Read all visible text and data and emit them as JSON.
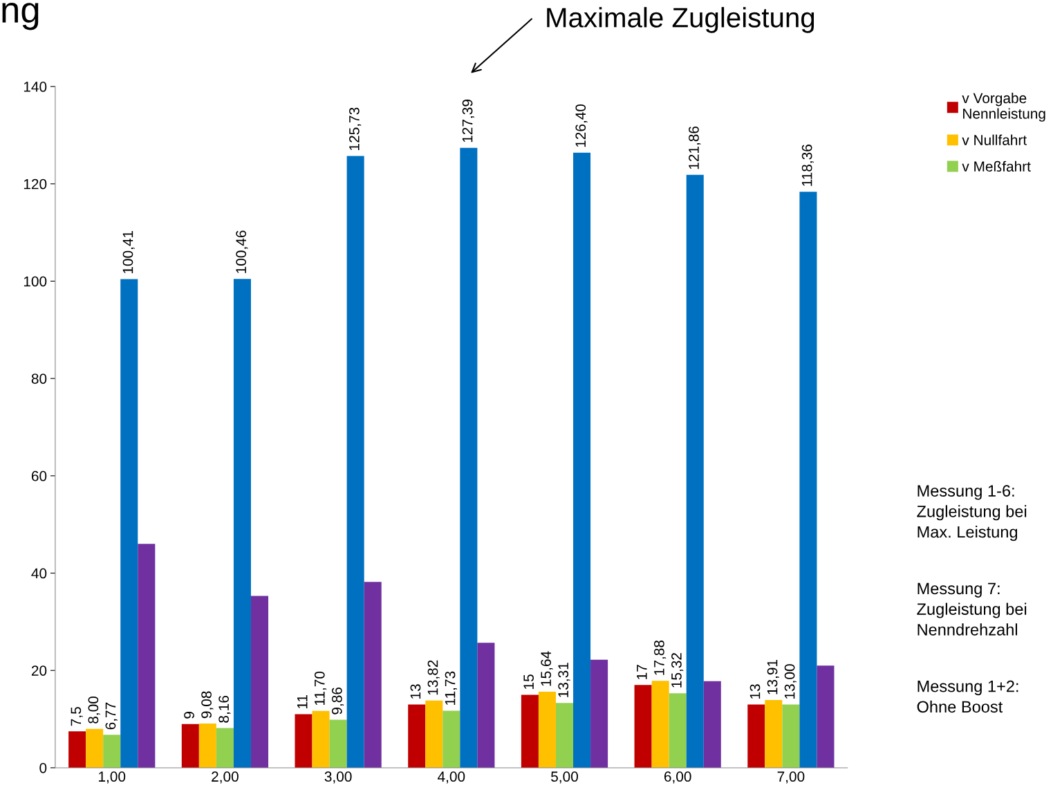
{
  "chart_data": {
    "type": "bar",
    "categories": [
      "1,00",
      "2,00",
      "3,00",
      "4,00",
      "5,00",
      "6,00",
      "7,00"
    ],
    "series": [
      {
        "name": "v Vorgabe\nNennleistung",
        "color": "#c00000",
        "values": [
          7.5,
          9,
          11,
          13,
          15,
          17,
          13
        ],
        "value_labels": [
          "7,5",
          "9",
          "11",
          "13",
          "15",
          "17",
          "13"
        ]
      },
      {
        "name": "v Nullfahrt",
        "color": "#ffc000",
        "values": [
          8.0,
          9.08,
          11.7,
          13.82,
          15.64,
          17.88,
          13.91
        ],
        "value_labels": [
          "8,00",
          "9,08",
          "11,70",
          "13,82",
          "15,64",
          "17,88",
          "13,91"
        ]
      },
      {
        "name": "v Meßfahrt",
        "color": "#92d050",
        "values": [
          6.77,
          8.16,
          9.86,
          11.73,
          13.31,
          15.32,
          13.0
        ],
        "value_labels": [
          "6,77",
          "8,16",
          "9,86",
          "11,73",
          "13,31",
          "15,32",
          "13,00"
        ]
      },
      {
        "color": "#0070c0",
        "values": [
          100.41,
          100.46,
          125.73,
          127.39,
          126.4,
          121.86,
          118.36
        ],
        "value_labels": [
          "100,41",
          "100,46",
          "125,73",
          "127,39",
          "126,40",
          "121,86",
          "118,36"
        ]
      },
      {
        "color": "#7030a0",
        "values": [
          46,
          35.3,
          38.2,
          25.7,
          22.2,
          17.8,
          21.0
        ]
      }
    ],
    "ylim": [
      0,
      140
    ],
    "yticks": [
      0,
      20,
      40,
      60,
      80,
      100,
      120,
      140
    ],
    "grid": false,
    "legend": "right",
    "annotations": [
      "ng",
      "Maximale Zugleistung",
      "Messung 1-6:\nZugleistung bei\nMax. Leistung",
      "Messung 7:\nZugleistung bei\nNenndrehzahl",
      "Messung 1+2:\nOhne Boost"
    ]
  }
}
